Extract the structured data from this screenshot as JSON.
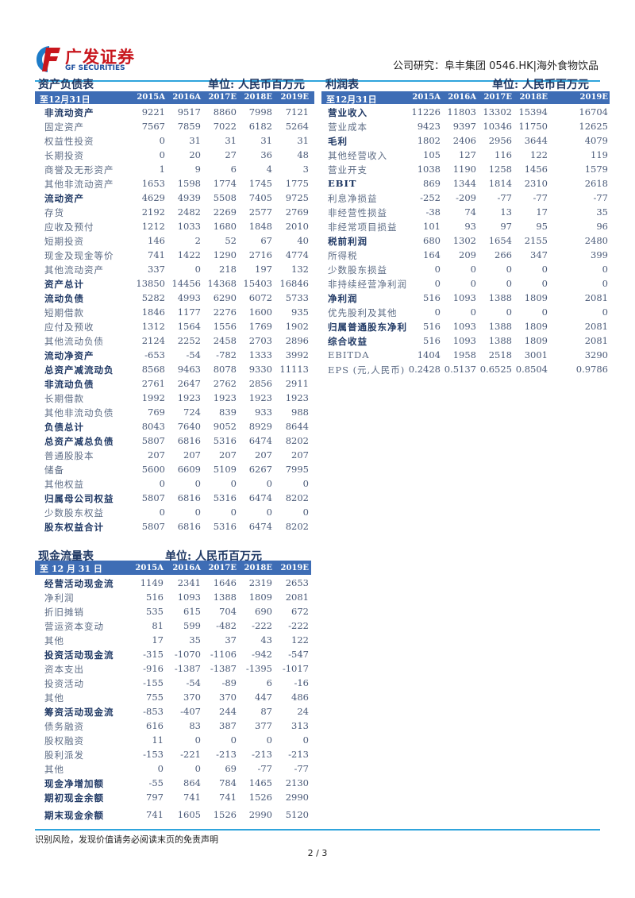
{
  "header": {
    "logo_cn": "广发证券",
    "logo_en": "GF SECURITIES",
    "report_info": "公司研究：阜丰集团 0546.HK|海外食物饮品"
  },
  "colors": {
    "header_bar": "#3e6db5",
    "rule": "#2fa4dc",
    "bold_text": "#1f3864",
    "logo_red": "#c8161d",
    "logo_blue": "#1d4e9e"
  },
  "balance_sheet": {
    "title": "资产负债表",
    "unit": "单位: 人民币百万元",
    "period_label": "至12月31日",
    "years": [
      "2015A",
      "2016A",
      "2017E",
      "2018E",
      "2019E"
    ],
    "rows": [
      {
        "label": "非流动资产",
        "bold": true,
        "values": [
          "9221",
          "9517",
          "8860",
          "7998",
          "7121"
        ]
      },
      {
        "label": "固定资产",
        "bold": false,
        "values": [
          "7567",
          "7859",
          "7022",
          "6182",
          "5264"
        ]
      },
      {
        "label": "权益性投资",
        "bold": false,
        "values": [
          "0",
          "31",
          "31",
          "31",
          "31"
        ]
      },
      {
        "label": "长期投资",
        "bold": false,
        "values": [
          "0",
          "20",
          "27",
          "36",
          "48"
        ]
      },
      {
        "label": "商誉及无形资产",
        "bold": false,
        "values": [
          "1",
          "9",
          "6",
          "4",
          "3"
        ]
      },
      {
        "label": "其他非流动资产",
        "bold": false,
        "values": [
          "1653",
          "1598",
          "1774",
          "1745",
          "1775"
        ]
      },
      {
        "label": "流动资产",
        "bold": true,
        "values": [
          "4629",
          "4939",
          "5508",
          "7405",
          "9725"
        ]
      },
      {
        "label": "存货",
        "bold": false,
        "values": [
          "2192",
          "2482",
          "2269",
          "2577",
          "2769"
        ]
      },
      {
        "label": "应收及预付",
        "bold": false,
        "values": [
          "1212",
          "1033",
          "1680",
          "1848",
          "2010"
        ]
      },
      {
        "label": "短期投资",
        "bold": false,
        "values": [
          "146",
          "2",
          "52",
          "67",
          "40"
        ]
      },
      {
        "label": "现金及现金等价",
        "bold": false,
        "values": [
          "741",
          "1422",
          "1290",
          "2716",
          "4774"
        ]
      },
      {
        "label": "其他流动资产",
        "bold": false,
        "values": [
          "337",
          "0",
          "218",
          "197",
          "132"
        ]
      },
      {
        "label": "资产总计",
        "bold": true,
        "values": [
          "13850",
          "14456",
          "14368",
          "15403",
          "16846"
        ]
      },
      {
        "label": "流动负债",
        "bold": true,
        "values": [
          "5282",
          "4993",
          "6290",
          "6072",
          "5733"
        ]
      },
      {
        "label": "短期借款",
        "bold": false,
        "values": [
          "1846",
          "1177",
          "2276",
          "1600",
          "935"
        ]
      },
      {
        "label": "应付及预收",
        "bold": false,
        "values": [
          "1312",
          "1564",
          "1556",
          "1769",
          "1902"
        ]
      },
      {
        "label": "其他流动负债",
        "bold": false,
        "values": [
          "2124",
          "2252",
          "2458",
          "2703",
          "2896"
        ]
      },
      {
        "label": "流动净资产",
        "bold": true,
        "values": [
          "-653",
          "-54",
          "-782",
          "1333",
          "3992"
        ]
      },
      {
        "label": "总资产减流动负",
        "bold": true,
        "values": [
          "8568",
          "9463",
          "8078",
          "9330",
          "11113"
        ]
      },
      {
        "label": "非流动负债",
        "bold": true,
        "values": [
          "2761",
          "2647",
          "2762",
          "2856",
          "2911"
        ]
      },
      {
        "label": "长期借款",
        "bold": false,
        "values": [
          "1992",
          "1923",
          "1923",
          "1923",
          "1923"
        ]
      },
      {
        "label": "其他非流动负债",
        "bold": false,
        "values": [
          "769",
          "724",
          "839",
          "933",
          "988"
        ]
      },
      {
        "label": "负债总计",
        "bold": true,
        "values": [
          "8043",
          "7640",
          "9052",
          "8929",
          "8644"
        ]
      },
      {
        "label": "总资产减总负债",
        "bold": true,
        "values": [
          "5807",
          "6816",
          "5316",
          "6474",
          "8202"
        ]
      },
      {
        "label": "普通股股本",
        "bold": false,
        "values": [
          "207",
          "207",
          "207",
          "207",
          "207"
        ]
      },
      {
        "label": "储备",
        "bold": false,
        "values": [
          "5600",
          "6609",
          "5109",
          "6267",
          "7995"
        ]
      },
      {
        "label": "其他权益",
        "bold": false,
        "values": [
          "0",
          "0",
          "0",
          "0",
          "0"
        ]
      },
      {
        "label": "归属母公司权益",
        "bold": true,
        "values": [
          "5807",
          "6816",
          "5316",
          "6474",
          "8202"
        ]
      },
      {
        "label": "少数股东权益",
        "bold": false,
        "values": [
          "0",
          "0",
          "0",
          "0",
          "0"
        ]
      },
      {
        "label": "股东权益合计",
        "bold": true,
        "values": [
          "5807",
          "6816",
          "5316",
          "6474",
          "8202"
        ]
      }
    ]
  },
  "income_statement": {
    "title": "利润表",
    "unit": "单位: 人民币百万元",
    "period_label": "至12月31日",
    "years": [
      "2015A",
      "2016A",
      "2017E",
      "2018E",
      "2019E"
    ],
    "rows": [
      {
        "label": "营业收入",
        "bold": true,
        "values": [
          "11226",
          "11803",
          "13302",
          "15394",
          "16704"
        ]
      },
      {
        "label": "营业成本",
        "bold": false,
        "values": [
          "9423",
          "9397",
          "10346",
          "11750",
          "12625"
        ]
      },
      {
        "label": "毛利",
        "bold": true,
        "values": [
          "1802",
          "2406",
          "2956",
          "3644",
          "4079"
        ]
      },
      {
        "label": "其他经营收入",
        "bold": false,
        "values": [
          "105",
          "127",
          "116",
          "122",
          "119"
        ]
      },
      {
        "label": "营业开支",
        "bold": false,
        "values": [
          "1038",
          "1190",
          "1258",
          "1456",
          "1579"
        ]
      },
      {
        "label": "EBIT",
        "bold": true,
        "values": [
          "869",
          "1344",
          "1814",
          "2310",
          "2618"
        ]
      },
      {
        "label": "利息净损益",
        "bold": false,
        "values": [
          "-252",
          "-209",
          "-77",
          "-77",
          "-77"
        ]
      },
      {
        "label": "非经营性损益",
        "bold": false,
        "values": [
          "-38",
          "74",
          "13",
          "17",
          "35"
        ]
      },
      {
        "label": "非经常项目损益",
        "bold": false,
        "values": [
          "101",
          "93",
          "97",
          "95",
          "96"
        ]
      },
      {
        "label": "税前利润",
        "bold": true,
        "values": [
          "680",
          "1302",
          "1654",
          "2155",
          "2480"
        ]
      },
      {
        "label": "所得税",
        "bold": false,
        "values": [
          "164",
          "209",
          "266",
          "347",
          "399"
        ]
      },
      {
        "label": "少数股东损益",
        "bold": false,
        "values": [
          "0",
          "0",
          "0",
          "0",
          "0"
        ]
      },
      {
        "label": "非持续经营净利润",
        "bold": false,
        "values": [
          "0",
          "0",
          "0",
          "0",
          "0"
        ]
      },
      {
        "label": "净利润",
        "bold": true,
        "values": [
          "516",
          "1093",
          "1388",
          "1809",
          "2081"
        ]
      },
      {
        "label": "优先股利及其他",
        "bold": false,
        "values": [
          "0",
          "0",
          "0",
          "0",
          "0"
        ]
      },
      {
        "label": "归属普通股东净利",
        "bold": true,
        "values": [
          "516",
          "1093",
          "1388",
          "1809",
          "2081"
        ]
      },
      {
        "label": "综合收益",
        "bold": true,
        "values": [
          "516",
          "1093",
          "1388",
          "1809",
          "2081"
        ]
      },
      {
        "label": "EBITDA",
        "bold": false,
        "values": [
          "1404",
          "1958",
          "2518",
          "3001",
          "3290"
        ]
      },
      {
        "label": "EPS (元,人民币)",
        "bold": false,
        "values": [
          "0.2428",
          "0.5137",
          "0.6525",
          "0.8504",
          "0.9786"
        ]
      }
    ]
  },
  "cash_flow": {
    "title": "现金流量表",
    "unit": "单位: 人民币百万元",
    "period_label": "至 12 月 31 日",
    "years": [
      "2015A",
      "2016A",
      "2017E",
      "2018E",
      "2019E"
    ],
    "rows": [
      {
        "label": "经营活动现金流",
        "bold": true,
        "values": [
          "1149",
          "2341",
          "1646",
          "2319",
          "2653"
        ]
      },
      {
        "label": "净利润",
        "bold": false,
        "values": [
          "516",
          "1093",
          "1388",
          "1809",
          "2081"
        ]
      },
      {
        "label": "折旧摊销",
        "bold": false,
        "values": [
          "535",
          "615",
          "704",
          "690",
          "672"
        ]
      },
      {
        "label": "营运资本变动",
        "bold": false,
        "values": [
          "81",
          "599",
          "-482",
          "-222",
          "-222"
        ]
      },
      {
        "label": "其他",
        "bold": false,
        "values": [
          "17",
          "35",
          "37",
          "43",
          "122"
        ]
      },
      {
        "label": "投资活动现金流",
        "bold": true,
        "values": [
          "-315",
          "-1070",
          "-1106",
          "-942",
          "-547"
        ]
      },
      {
        "label": "资本支出",
        "bold": false,
        "values": [
          "-916",
          "-1387",
          "-1387",
          "-1395",
          "-1017"
        ]
      },
      {
        "label": "投资活动",
        "bold": false,
        "values": [
          "-155",
          "-54",
          "-89",
          "6",
          "-16"
        ]
      },
      {
        "label": "其他",
        "bold": false,
        "values": [
          "755",
          "370",
          "370",
          "447",
          "486"
        ]
      },
      {
        "label": "筹资活动现金流",
        "bold": true,
        "values": [
          "-853",
          "-407",
          "244",
          "87",
          "24"
        ]
      },
      {
        "label": "债务融资",
        "bold": false,
        "values": [
          "616",
          "83",
          "387",
          "377",
          "313"
        ]
      },
      {
        "label": "股权融资",
        "bold": false,
        "values": [
          "11",
          "0",
          "0",
          "0",
          "0"
        ]
      },
      {
        "label": "股利派发",
        "bold": false,
        "values": [
          "-153",
          "-221",
          "-213",
          "-213",
          "-213"
        ]
      },
      {
        "label": "其他",
        "bold": false,
        "values": [
          "0",
          "0",
          "69",
          "-77",
          "-77"
        ]
      },
      {
        "label": "现金净增加额",
        "bold": true,
        "values": [
          "-55",
          "864",
          "784",
          "1465",
          "2130"
        ]
      },
      {
        "label": "期初现金余额",
        "bold": true,
        "values": [
          "797",
          "741",
          "741",
          "1526",
          "2990"
        ]
      },
      {
        "label": "期末现金余额",
        "bold": true,
        "values": [
          "741",
          "1605",
          "1526",
          "2990",
          "5120"
        ]
      }
    ]
  },
  "footer": {
    "disclaimer": "识别风险，发现价值请务必阅读末页的免责声明",
    "page": "2 / 3"
  }
}
